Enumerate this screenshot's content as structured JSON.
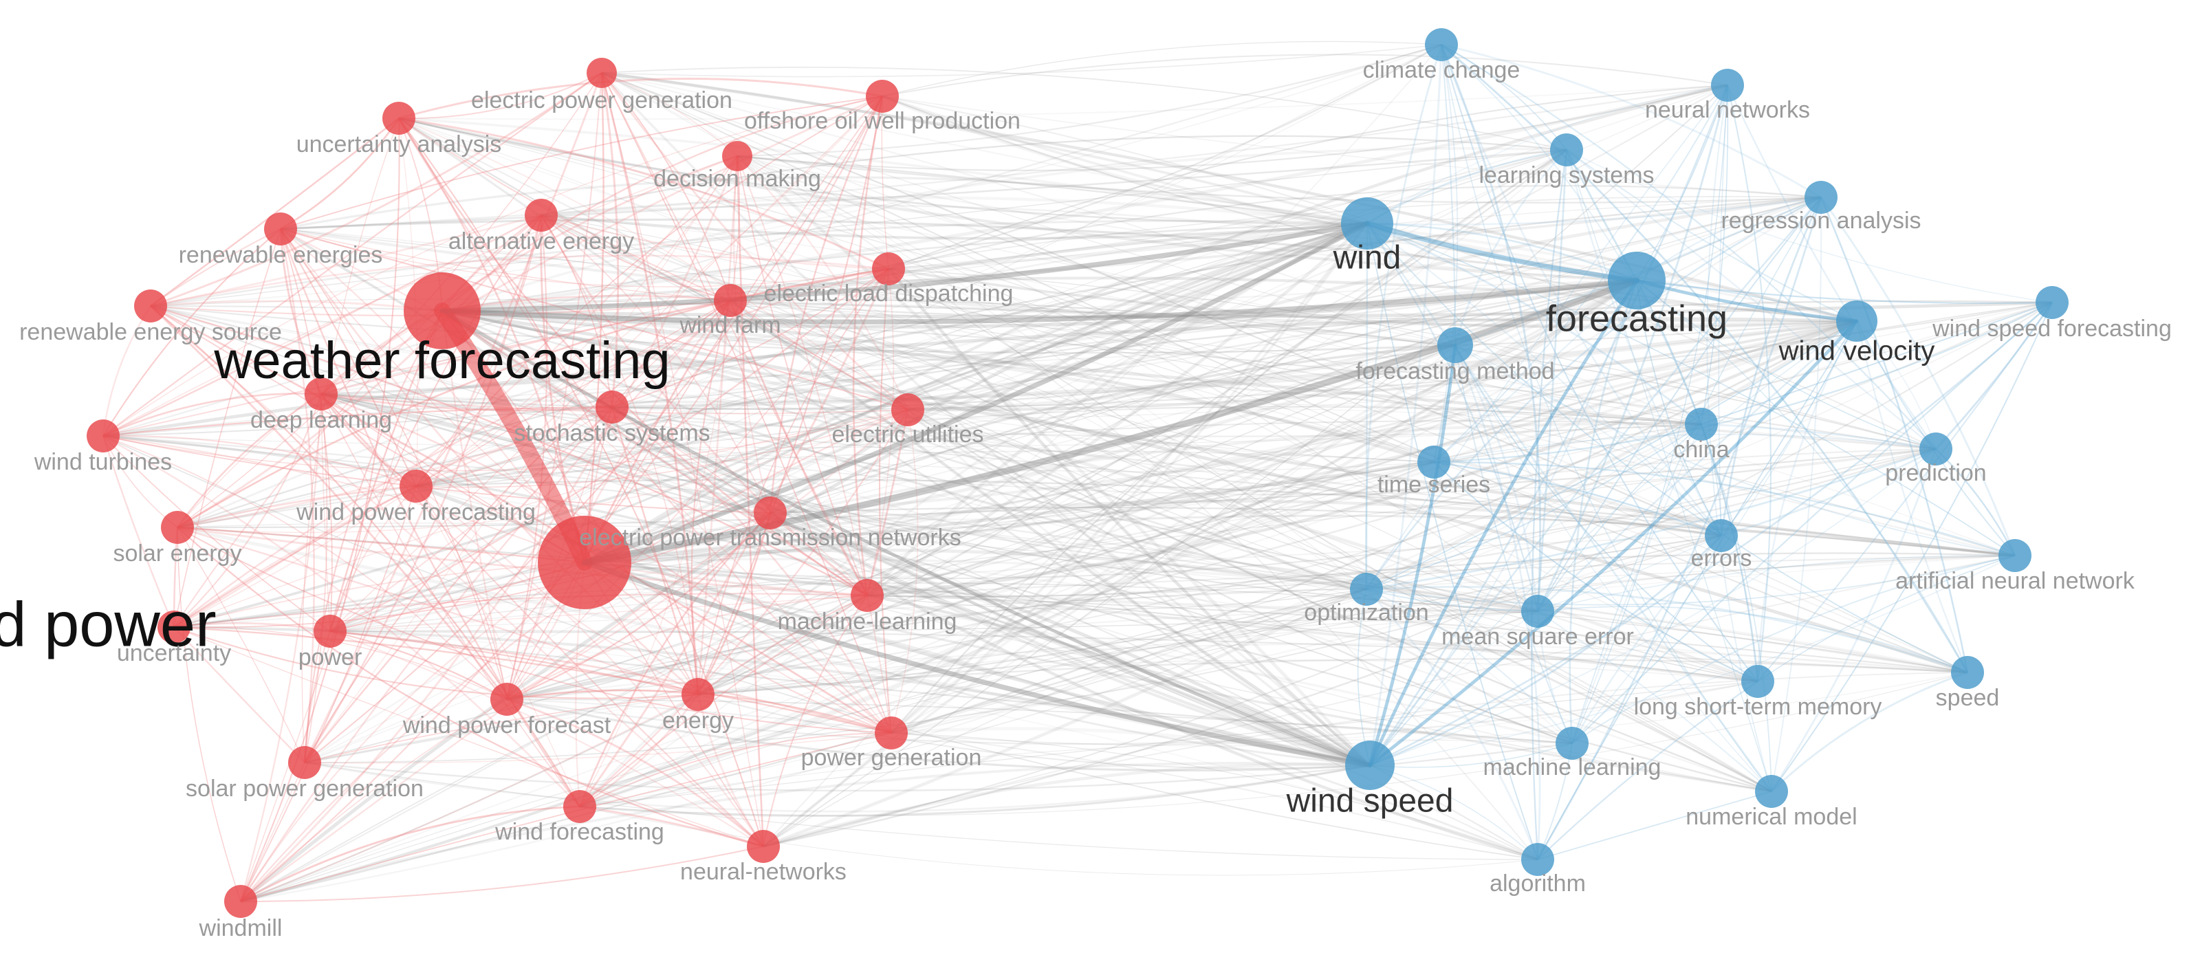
{
  "clusters": [
    {
      "id": "red",
      "color": "#e8474a",
      "edge_color": "#f08a8c"
    },
    {
      "id": "blue",
      "color": "#4a9bcb",
      "edge_color": "#8fbfdd"
    }
  ],
  "cross_edge_color": "#9a9a9a",
  "nodes": [
    {
      "id": "wind-power",
      "label": "wind power",
      "cluster": "red",
      "weight": 10
    },
    {
      "id": "weather-forecasting",
      "label": "weather forecasting",
      "cluster": "red",
      "weight": 7
    },
    {
      "id": "electric-power-generation",
      "label": "electric power generation",
      "cluster": "red",
      "weight": 1
    },
    {
      "id": "offshore-oil-well-production",
      "label": "offshore oil well production",
      "cluster": "red",
      "weight": 1
    },
    {
      "id": "uncertainty-analysis",
      "label": "uncertainty analysis",
      "cluster": "red",
      "weight": 1
    },
    {
      "id": "decision-making",
      "label": "decision making",
      "cluster": "red",
      "weight": 1
    },
    {
      "id": "renewable-energies",
      "label": "renewable energies",
      "cluster": "red",
      "weight": 1
    },
    {
      "id": "alternative-energy",
      "label": "alternative energy",
      "cluster": "red",
      "weight": 1
    },
    {
      "id": "electric-load-dispatching",
      "label": "electric load dispatching",
      "cluster": "red",
      "weight": 1
    },
    {
      "id": "renewable-energy-source",
      "label": "renewable energy source",
      "cluster": "red",
      "weight": 1
    },
    {
      "id": "wind-farm",
      "label": "wind farm",
      "cluster": "red",
      "weight": 1
    },
    {
      "id": "deep-learning",
      "label": "deep learning",
      "cluster": "red",
      "weight": 1
    },
    {
      "id": "stochastic-systems",
      "label": "stochastic systems",
      "cluster": "red",
      "weight": 1
    },
    {
      "id": "electric-utilities",
      "label": "electric utilities",
      "cluster": "red",
      "weight": 1
    },
    {
      "id": "wind-turbines",
      "label": "wind turbines",
      "cluster": "red",
      "weight": 1
    },
    {
      "id": "wind-power-forecasting",
      "label": "wind power forecasting",
      "cluster": "red",
      "weight": 1
    },
    {
      "id": "electric-power-transmission-networks",
      "label": "electric power transmission networks",
      "cluster": "red",
      "weight": 1
    },
    {
      "id": "solar-energy",
      "label": "solar energy",
      "cluster": "red",
      "weight": 1
    },
    {
      "id": "machine-learning-red",
      "label": "machine-learning",
      "cluster": "red",
      "weight": 1
    },
    {
      "id": "uncertainty",
      "label": "uncertainty",
      "cluster": "red",
      "weight": 1
    },
    {
      "id": "power",
      "label": "power",
      "cluster": "red",
      "weight": 1
    },
    {
      "id": "wind-power-forecast",
      "label": "wind power forecast",
      "cluster": "red",
      "weight": 1
    },
    {
      "id": "energy",
      "label": "energy",
      "cluster": "red",
      "weight": 1
    },
    {
      "id": "power-generation",
      "label": "power generation",
      "cluster": "red",
      "weight": 1
    },
    {
      "id": "solar-power-generation",
      "label": "solar power generation",
      "cluster": "red",
      "weight": 1
    },
    {
      "id": "wind-forecasting",
      "label": "wind forecasting",
      "cluster": "red",
      "weight": 1
    },
    {
      "id": "neural-networks-red",
      "label": "neural-networks",
      "cluster": "red",
      "weight": 1
    },
    {
      "id": "windmill",
      "label": "windmill",
      "cluster": "red",
      "weight": 1
    },
    {
      "id": "forecasting",
      "label": "forecasting",
      "cluster": "blue",
      "weight": 5
    },
    {
      "id": "wind",
      "label": "wind",
      "cluster": "blue",
      "weight": 4
    },
    {
      "id": "wind-speed",
      "label": "wind speed",
      "cluster": "blue",
      "weight": 4
    },
    {
      "id": "climate-change",
      "label": "climate change",
      "cluster": "blue",
      "weight": 1
    },
    {
      "id": "neural-networks-blue",
      "label": "neural networks",
      "cluster": "blue",
      "weight": 1
    },
    {
      "id": "learning-systems",
      "label": "learning systems",
      "cluster": "blue",
      "weight": 1
    },
    {
      "id": "regression-analysis",
      "label": "regression analysis",
      "cluster": "blue",
      "weight": 1
    },
    {
      "id": "wind-speed-forecasting",
      "label": "wind speed forecasting",
      "cluster": "blue",
      "weight": 1
    },
    {
      "id": "wind-velocity",
      "label": "wind velocity",
      "cluster": "blue",
      "weight": 2
    },
    {
      "id": "forecasting-method",
      "label": "forecasting method",
      "cluster": "blue",
      "weight": 1
    },
    {
      "id": "china",
      "label": "china",
      "cluster": "blue",
      "weight": 1
    },
    {
      "id": "time-series",
      "label": "time series",
      "cluster": "blue",
      "weight": 1
    },
    {
      "id": "prediction",
      "label": "prediction",
      "cluster": "blue",
      "weight": 1
    },
    {
      "id": "errors",
      "label": "errors",
      "cluster": "blue",
      "weight": 1
    },
    {
      "id": "artificial-neural-network",
      "label": "artificial neural network",
      "cluster": "blue",
      "weight": 1
    },
    {
      "id": "optimization",
      "label": "optimization",
      "cluster": "blue",
      "weight": 1
    },
    {
      "id": "mean-square-error",
      "label": "mean square error",
      "cluster": "blue",
      "weight": 1
    },
    {
      "id": "long-short-term-memory",
      "label": "long short-term memory",
      "cluster": "blue",
      "weight": 1
    },
    {
      "id": "speed",
      "label": "speed",
      "cluster": "blue",
      "weight": 1
    },
    {
      "id": "machine-learning-blue",
      "label": "machine learning",
      "cluster": "blue",
      "weight": 1
    },
    {
      "id": "numerical-model",
      "label": "numerical model",
      "cluster": "blue",
      "weight": 1
    },
    {
      "id": "algorithm",
      "label": "algorithm",
      "cluster": "blue",
      "weight": 1
    }
  ],
  "strong_links": [
    [
      "wind-power",
      "weather-forecasting",
      10
    ],
    [
      "wind-power",
      "forecasting",
      4
    ],
    [
      "wind-power",
      "wind",
      3
    ],
    [
      "wind-power",
      "wind-speed",
      3
    ],
    [
      "weather-forecasting",
      "wind",
      3
    ],
    [
      "weather-forecasting",
      "forecasting",
      3
    ],
    [
      "weather-forecasting",
      "wind-speed",
      2
    ],
    [
      "wind",
      "forecasting",
      3
    ],
    [
      "forecasting",
      "wind-velocity",
      2
    ],
    [
      "forecasting",
      "wind-speed",
      2
    ],
    [
      "wind-speed",
      "wind-velocity",
      2
    ],
    [
      "wind-speed",
      "forecasting-method",
      2
    ]
  ]
}
